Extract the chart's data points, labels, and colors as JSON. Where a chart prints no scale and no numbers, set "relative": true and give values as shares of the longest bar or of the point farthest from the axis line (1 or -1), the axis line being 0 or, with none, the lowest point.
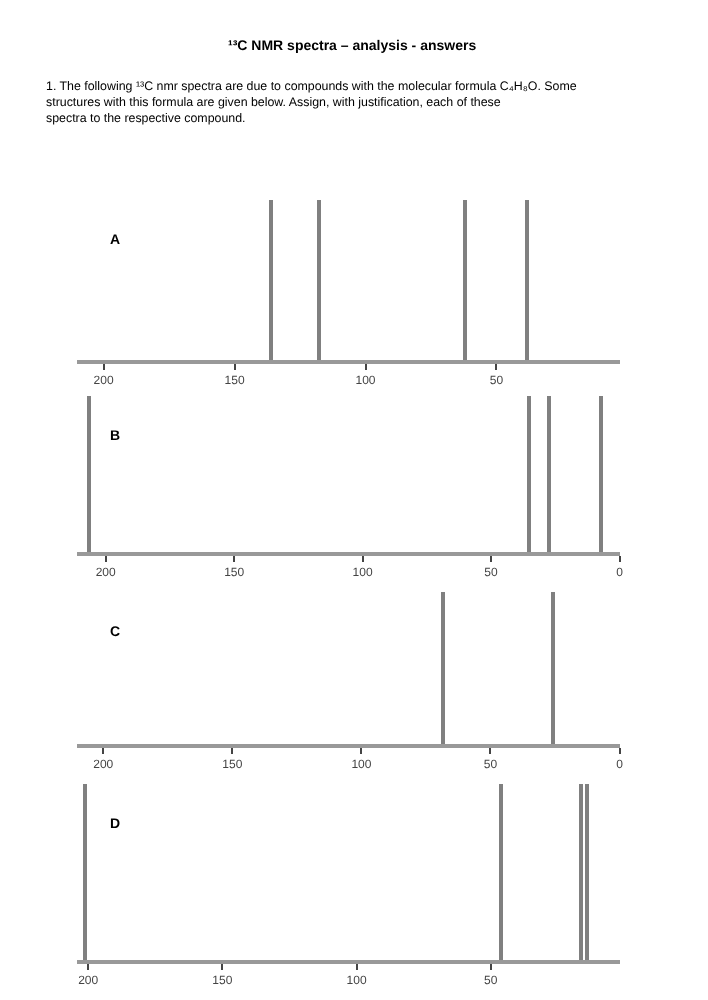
{
  "chart_data": [
    {
      "type": "bar",
      "title": "¹³C NMR spectra – analysis - answers",
      "annotations": [
        "1. The following ¹³C nmr spectra are due to compounds with the molecular formula C₄H₈O. Some structures with this formula are given below. Assign, with justification, each of these spectra to the respective compound.",
        "A"
      ],
      "x": [
        136,
        118,
        62,
        38
      ],
      "values": [
        1,
        1,
        1,
        1
      ],
      "color": "#808080",
      "relative": true,
      "xlim": [
        210,
        3
      ],
      "xticks": [
        200,
        150,
        100,
        50
      ]
    },
    {
      "type": "bar",
      "annotations": [
        "B"
      ],
      "x": [
        206,
        35,
        27,
        7
      ],
      "values": [
        1,
        1,
        1,
        1
      ],
      "color": "#808080",
      "relative": true,
      "xlim": [
        211,
        0
      ],
      "xticks": [
        200,
        150,
        100,
        50,
        0
      ]
    },
    {
      "type": "bar",
      "annotations": [
        "C"
      ],
      "x": [
        68,
        26
      ],
      "values": [
        1,
        1
      ],
      "color": "#808080",
      "relative": true,
      "xlim": [
        210,
        0
      ],
      "xticks": [
        200,
        150,
        100,
        50,
        0
      ]
    },
    {
      "type": "bar",
      "annotations": [
        "D"
      ],
      "x": [
        201,
        46,
        16,
        14
      ],
      "values": [
        1,
        1,
        1,
        1
      ],
      "color": "#808080",
      "relative": true,
      "xlim": [
        204,
        2
      ],
      "xticks": [
        200,
        150,
        100,
        50
      ]
    }
  ]
}
